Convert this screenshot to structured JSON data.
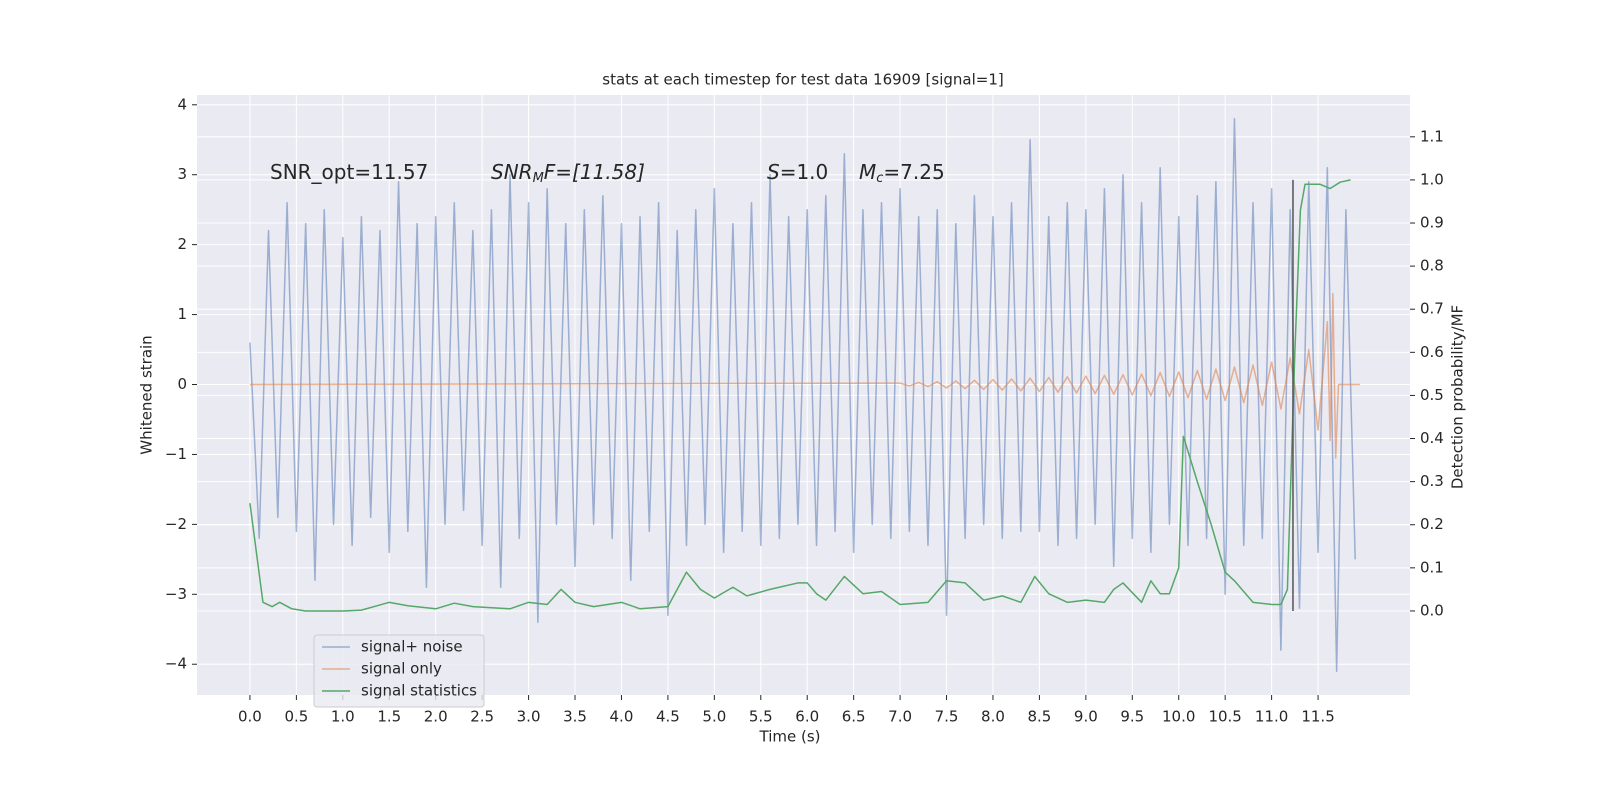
{
  "chart_data": {
    "type": "line",
    "title": "stats at each timestep for test data 16909 [signal=1]",
    "x_label": "Time (s)",
    "y_label": "Whitened strain",
    "y2_label": "Detection probability/MF",
    "annotations": [
      [
        "SNR_opt=11.57"
      ],
      [
        "SNR",
        "M",
        "F=[11.58]"
      ],
      [
        "S",
        "=1.0"
      ],
      [
        "M",
        "c",
        "=7.25"
      ]
    ],
    "xlim": [
      -0.57,
      12.49
    ],
    "xticks": [
      {
        "value": 0,
        "label": "0.0"
      },
      0.5,
      {
        "value": 1,
        "label": "1.0"
      },
      1.5,
      {
        "value": 2,
        "label": "2.0"
      },
      2.5,
      {
        "value": 3,
        "label": "3.0"
      },
      3.5,
      {
        "value": 4,
        "label": "4.0"
      },
      4.5,
      {
        "value": 5,
        "label": "5.0"
      },
      5.5,
      {
        "value": 6,
        "label": "6.0"
      },
      6.5,
      {
        "value": 7,
        "label": "7.0"
      },
      7.5,
      {
        "value": 8,
        "label": "8.0"
      },
      8.5,
      {
        "value": 9,
        "label": "9.0"
      },
      9.5,
      {
        "value": 10,
        "label": "10.0"
      },
      10.5,
      {
        "value": 11,
        "label": "11.0"
      },
      11.5
    ],
    "ylim": [
      -4.44,
      4.14
    ],
    "yticks": [
      {
        "value": -4,
        "label": "−4"
      },
      {
        "value": -3,
        "label": "−3"
      },
      {
        "value": -2,
        "label": "−2"
      },
      {
        "value": -1,
        "label": "−1"
      },
      0,
      1,
      2,
      3,
      4
    ],
    "y2lim": [
      -0.195,
      1.197
    ],
    "y2ticks": [
      {
        "value": 0,
        "label": "0.0"
      },
      0.1,
      0.2,
      0.3,
      0.4,
      0.5,
      0.6,
      0.7,
      0.8,
      0.9,
      {
        "value": 1,
        "label": "1.0"
      },
      1.1
    ],
    "grid": true,
    "legend": "lower left",
    "vline": {
      "x": 11.23,
      "y2range": [
        0,
        1
      ],
      "color": "#555555"
    },
    "series": [
      {
        "name": "signal+ noise",
        "color": "#4c72b0",
        "alpha": 0.5,
        "x": [
          0.0,
          0.1,
          0.2,
          0.3,
          0.4,
          0.5,
          0.6,
          0.7,
          0.8,
          0.9,
          1.0,
          1.1,
          1.2,
          1.3,
          1.4,
          1.5,
          1.6,
          1.7,
          1.8,
          1.9,
          2.0,
          2.1,
          2.2,
          2.3,
          2.4,
          2.5,
          2.6,
          2.7,
          2.8,
          2.9,
          3.0,
          3.1,
          3.2,
          3.3,
          3.4,
          3.5,
          3.6,
          3.7,
          3.8,
          3.9,
          4.0,
          4.1,
          4.2,
          4.3,
          4.4,
          4.5,
          4.6,
          4.7,
          4.8,
          4.9,
          5.0,
          5.1,
          5.2,
          5.3,
          5.4,
          5.5,
          5.6,
          5.7,
          5.8,
          5.9,
          6.0,
          6.1,
          6.2,
          6.3,
          6.4,
          6.5,
          6.6,
          6.7,
          6.8,
          6.9,
          7.0,
          7.1,
          7.2,
          7.3,
          7.4,
          7.5,
          7.6,
          7.7,
          7.8,
          7.9,
          8.0,
          8.1,
          8.2,
          8.3,
          8.4,
          8.5,
          8.6,
          8.7,
          8.8,
          8.9,
          9.0,
          9.1,
          9.2,
          9.3,
          9.4,
          9.5,
          9.6,
          9.7,
          9.8,
          9.9,
          10.0,
          10.1,
          10.2,
          10.3,
          10.4,
          10.5,
          10.6,
          10.7,
          10.8,
          10.9,
          11.0,
          11.1,
          11.2,
          11.3,
          11.4,
          11.5,
          11.6,
          11.7,
          11.8,
          11.9
        ],
        "values": [
          0.6,
          -2.2,
          2.2,
          -1.9,
          2.6,
          -2.1,
          2.3,
          -2.8,
          2.5,
          -2.0,
          2.1,
          -2.3,
          2.4,
          -1.9,
          2.2,
          -2.4,
          2.9,
          -2.1,
          2.3,
          -2.9,
          2.4,
          -2.0,
          2.6,
          -1.8,
          2.2,
          -2.3,
          2.5,
          -2.9,
          3.0,
          -2.2,
          2.6,
          -3.4,
          2.8,
          -2.0,
          2.3,
          -2.6,
          2.5,
          -2.0,
          2.7,
          -2.2,
          2.3,
          -2.8,
          2.4,
          -2.1,
          2.6,
          -3.3,
          2.2,
          -2.3,
          2.5,
          -2.0,
          2.8,
          -2.4,
          2.3,
          -2.1,
          2.6,
          -2.3,
          3.0,
          -2.2,
          2.4,
          -2.0,
          2.5,
          -2.3,
          2.7,
          -2.1,
          3.3,
          -2.4,
          2.5,
          -2.0,
          2.6,
          -2.2,
          2.8,
          -2.1,
          2.4,
          -2.3,
          2.5,
          -3.3,
          2.3,
          -2.2,
          2.7,
          -2.0,
          2.4,
          -2.2,
          2.6,
          -2.1,
          3.5,
          -2.1,
          2.4,
          -2.3,
          2.6,
          -2.2,
          2.5,
          -2.0,
          2.8,
          -2.6,
          3.0,
          -2.2,
          2.6,
          -2.4,
          3.1,
          -2.0,
          2.4,
          -2.3,
          2.7,
          -2.2,
          2.9,
          -3.0,
          3.8,
          -2.3,
          2.6,
          -2.2,
          2.8,
          -3.8,
          2.5,
          -3.2,
          2.9,
          -2.4,
          3.1,
          -4.1,
          2.5,
          -2.5
        ]
      },
      {
        "name": "signal only",
        "color": "#dd8452",
        "alpha": 0.6,
        "x": [
          0.0,
          7.0,
          7.1,
          7.2,
          7.3,
          7.4,
          7.5,
          7.6,
          7.7,
          7.8,
          7.9,
          8.0,
          8.1,
          8.2,
          8.3,
          8.4,
          8.5,
          8.6,
          8.7,
          8.8,
          8.9,
          9.0,
          9.1,
          9.2,
          9.3,
          9.4,
          9.5,
          9.6,
          9.7,
          9.8,
          9.9,
          10.0,
          10.1,
          10.2,
          10.3,
          10.4,
          10.5,
          10.6,
          10.7,
          10.8,
          10.9,
          11.0,
          11.1,
          11.2,
          11.3,
          11.4,
          11.5,
          11.6,
          11.63,
          11.66,
          11.69,
          11.72,
          11.95
        ],
        "values": [
          0,
          0.02,
          -0.02,
          0.03,
          -0.03,
          0.04,
          -0.05,
          0.05,
          -0.06,
          0.06,
          -0.07,
          0.07,
          -0.08,
          0.08,
          -0.09,
          0.09,
          -0.1,
          0.1,
          -0.11,
          0.11,
          -0.12,
          0.12,
          -0.13,
          0.13,
          -0.14,
          0.14,
          -0.15,
          0.15,
          -0.16,
          0.17,
          -0.17,
          0.18,
          -0.19,
          0.2,
          -0.21,
          0.22,
          -0.23,
          0.25,
          -0.26,
          0.28,
          -0.3,
          0.32,
          -0.35,
          0.38,
          -0.42,
          0.5,
          -0.65,
          0.9,
          -0.8,
          1.3,
          -1.05,
          0,
          0
        ]
      },
      {
        "name": "signal statistics",
        "color": "#55a868",
        "alpha": 1,
        "axis": "y2",
        "x": [
          0,
          0.14,
          0.24,
          0.32,
          0.45,
          0.6,
          1.0,
          1.2,
          1.5,
          1.7,
          2.0,
          2.2,
          2.4,
          2.8,
          3.0,
          3.2,
          3.35,
          3.5,
          3.7,
          4.0,
          4.2,
          4.5,
          4.6,
          4.7,
          4.85,
          5.0,
          5.2,
          5.35,
          5.6,
          5.9,
          6.0,
          6.1,
          6.2,
          6.4,
          6.6,
          6.8,
          7.0,
          7.3,
          7.5,
          7.7,
          7.9,
          8.1,
          8.3,
          8.45,
          8.6,
          8.8,
          9.0,
          9.2,
          9.3,
          9.4,
          9.6,
          9.7,
          9.8,
          9.9,
          10.0,
          10.05,
          10.2,
          10.35,
          10.5,
          10.6,
          10.8,
          11.0,
          11.1,
          11.17,
          11.25,
          11.31,
          11.36,
          11.52,
          11.63,
          11.74,
          11.85
        ],
        "values": [
          0.25,
          0.02,
          0.01,
          0.02,
          0.005,
          0,
          0,
          0.002,
          0.02,
          0.012,
          0.005,
          0.018,
          0.01,
          0.005,
          0.02,
          0.015,
          0.05,
          0.02,
          0.01,
          0.02,
          0.005,
          0.01,
          0.05,
          0.09,
          0.05,
          0.03,
          0.055,
          0.035,
          0.05,
          0.065,
          0.065,
          0.04,
          0.025,
          0.08,
          0.04,
          0.045,
          0.015,
          0.02,
          0.07,
          0.065,
          0.025,
          0.035,
          0.02,
          0.08,
          0.04,
          0.02,
          0.025,
          0.02,
          0.05,
          0.065,
          0.02,
          0.07,
          0.04,
          0.04,
          0.1,
          0.405,
          0.3,
          0.2,
          0.09,
          0.07,
          0.02,
          0.015,
          0.015,
          0.05,
          0.6,
          0.93,
          0.99,
          0.99,
          0.98,
          0.995,
          1.0
        ]
      }
    ]
  }
}
